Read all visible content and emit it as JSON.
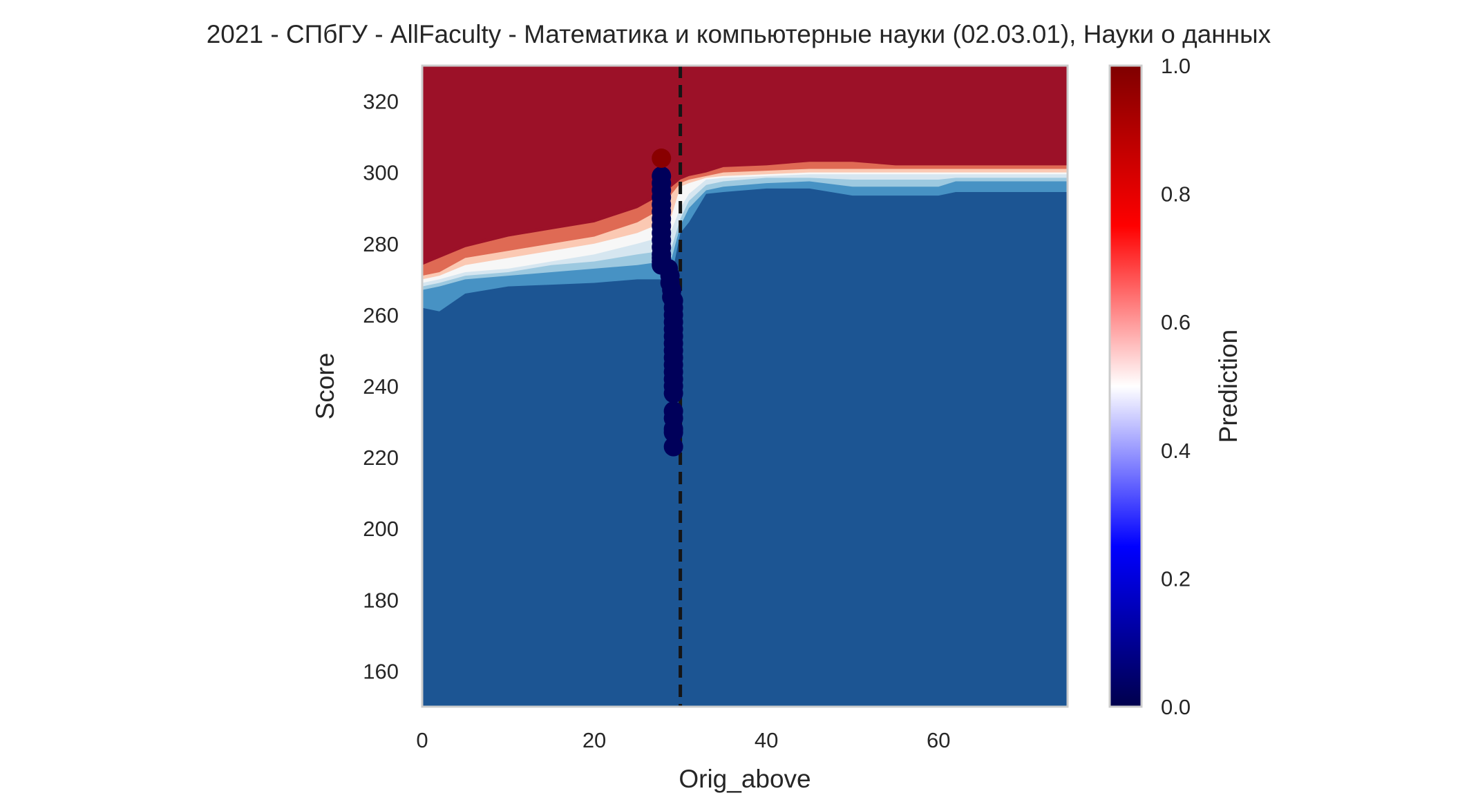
{
  "chart_data": {
    "type": "heatmap",
    "title": "2021 - СПбГУ - AllFaculty - Математика и компьютерные науки (02.03.01), Науки о данных",
    "xlabel": "Orig_above",
    "ylabel": "Score",
    "xlim": [
      0,
      75
    ],
    "ylim": [
      150,
      330
    ],
    "xticks": [
      0,
      20,
      40,
      60
    ],
    "yticks": [
      160,
      180,
      200,
      220,
      240,
      260,
      280,
      300,
      320
    ],
    "threshold_x": 30,
    "colorbar": {
      "label": "Prediction",
      "range": [
        0,
        1
      ],
      "ticks": [
        "0.0",
        "0.2",
        "0.4",
        "0.6",
        "0.8",
        "1.0"
      ],
      "colormap": [
        "#00004c",
        "#0000ff",
        "#ffffff",
        "#ff0000",
        "#7f0000"
      ]
    },
    "contour_levels": [
      {
        "p": 0.1,
        "color": "#1c5593"
      },
      {
        "p": 0.2,
        "color": "#4792c4"
      },
      {
        "p": 0.35,
        "color": "#9dc9e0"
      },
      {
        "p": 0.45,
        "color": "#d6e6f0"
      },
      {
        "p": 0.55,
        "color": "#f7f7f7"
      },
      {
        "p": 0.65,
        "color": "#fbc9b3"
      },
      {
        "p": 0.8,
        "color": "#df6a54"
      },
      {
        "p": 0.95,
        "color": "#9c1128"
      }
    ],
    "boundaries": {
      "x": [
        0,
        2,
        5,
        10,
        15,
        20,
        25,
        28,
        29,
        30,
        31,
        33,
        35,
        40,
        45,
        50,
        55,
        60,
        62,
        65,
        70,
        75
      ],
      "b0": [
        262,
        261,
        266,
        268,
        268.5,
        269,
        270,
        270,
        271,
        283,
        286,
        294,
        294.5,
        295.5,
        295.5,
        293.5,
        293.5,
        293.5,
        294.5,
        294.5,
        294.5,
        294.5
      ],
      "b1": [
        267,
        268,
        270,
        271,
        272,
        273,
        274,
        275,
        276,
        285,
        290,
        295,
        296,
        297,
        297.5,
        296,
        296,
        296,
        297.5,
        297.5,
        297.5,
        297.5
      ],
      "b2": [
        268,
        269,
        271,
        272,
        274,
        275,
        277,
        278,
        279,
        287,
        292,
        296.5,
        297.5,
        298.5,
        298.5,
        298,
        298,
        298,
        298.5,
        298.5,
        298.5,
        298.5
      ],
      "b3": [
        269,
        270,
        272,
        273,
        275,
        277,
        280,
        282,
        284,
        290,
        294,
        298,
        298.5,
        299,
        299.5,
        299.5,
        299.5,
        299.5,
        299.5,
        299.5,
        299.5,
        299.5
      ],
      "b4": [
        270,
        271,
        274,
        276,
        278,
        280,
        283,
        286,
        288,
        296,
        297,
        298.5,
        299,
        299.5,
        300,
        300,
        300,
        300,
        300,
        300,
        300,
        300
      ],
      "b5": [
        271,
        272,
        276,
        278,
        280,
        282,
        286,
        290,
        294,
        297,
        298,
        299,
        300,
        300.5,
        301,
        301,
        301,
        301,
        301,
        301,
        301,
        301
      ],
      "b6": [
        274,
        276,
        279,
        282,
        284,
        286,
        290,
        294,
        296,
        298,
        299,
        300,
        301.5,
        302,
        303,
        303,
        302,
        302,
        302,
        302,
        302,
        302
      ]
    },
    "high_region_x_max": 34.5,
    "series": [
      {
        "x": [
          27.8,
          27.8,
          27.8,
          27.8,
          27.8,
          27.8,
          27.8,
          27.8,
          27.8,
          27.8,
          27.8,
          27.8,
          27.8,
          27.8,
          27.8,
          28.6,
          28.8,
          28.8,
          29.0,
          29.0,
          29.2,
          29.2,
          29.2,
          29.2,
          29.2,
          29.2,
          29.2,
          29.2,
          29.2,
          29.2,
          29.2,
          29.2,
          29.2,
          29.2,
          29.2,
          29.2,
          29.2,
          29.2,
          29.2
        ],
        "y": [
          299,
          297,
          295,
          293,
          291,
          289,
          287,
          285,
          283,
          281,
          279,
          277,
          276,
          275,
          274,
          273,
          271,
          269,
          267,
          265,
          264,
          262,
          260,
          258,
          256,
          254,
          252,
          250,
          248,
          246,
          244,
          242,
          240,
          238,
          233,
          231,
          228,
          227,
          223
        ],
        "values": [
          0.02,
          0.02,
          0.02,
          0.02,
          0.02,
          0.02,
          0.02,
          0.02,
          0.02,
          0.02,
          0.02,
          0.02,
          0.02,
          0.02,
          0.02,
          0.02,
          0.02,
          0.02,
          0.02,
          0.02,
          0.02,
          0.02,
          0.02,
          0.02,
          0.02,
          0.02,
          0.02,
          0.02,
          0.02,
          0.02,
          0.02,
          0.02,
          0.02,
          0.02,
          0.02,
          0.02,
          0.02,
          0.02,
          0.02
        ]
      },
      {
        "x": [
          27.8
        ],
        "y": [
          304
        ],
        "values": [
          0.98
        ]
      }
    ]
  }
}
